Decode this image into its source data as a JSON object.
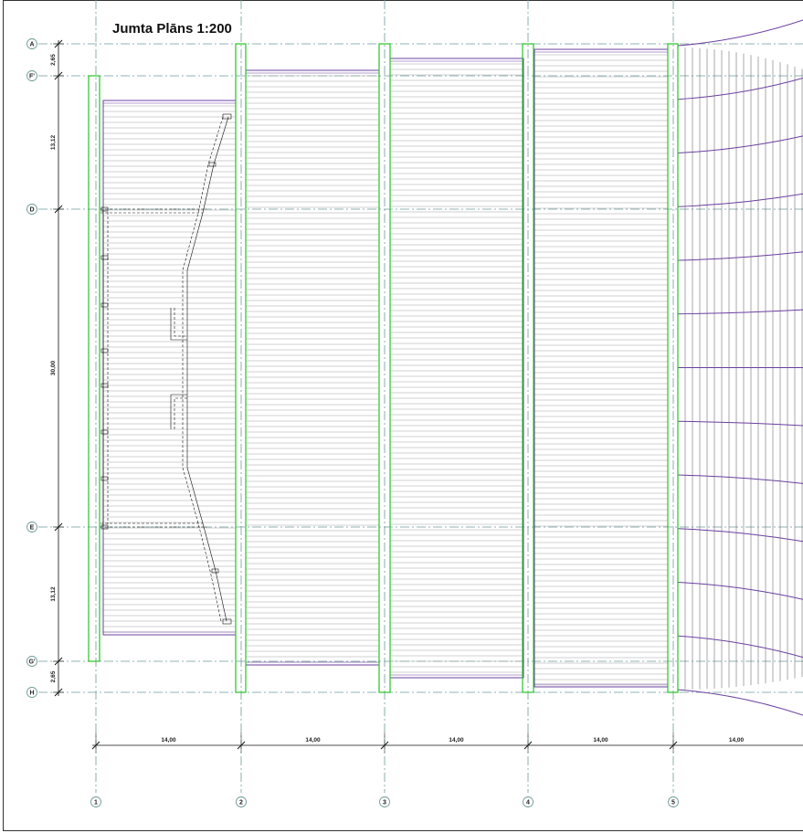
{
  "title": "Jumta Plāns 1:200",
  "colors": {
    "axis": "#6f9a9a",
    "column": "#25c425",
    "roof_edge": "#6b3fa0",
    "purlin": "#9a9a9a",
    "truss": "#111111",
    "dimension": "#111111"
  },
  "row_axes": [
    {
      "label": "A",
      "name": "axis-a"
    },
    {
      "label": "F'",
      "name": "axis-f-prime"
    },
    {
      "label": "D",
      "name": "axis-d"
    },
    {
      "label": "E",
      "name": "axis-e"
    },
    {
      "label": "G'",
      "name": "axis-g-prime"
    },
    {
      "label": "H",
      "name": "axis-h"
    }
  ],
  "column_axes": [
    {
      "label": "1"
    },
    {
      "label": "2"
    },
    {
      "label": "3"
    },
    {
      "label": "4"
    },
    {
      "label": "5"
    }
  ],
  "vertical_dimensions": [
    "2,65",
    "13,12",
    "30,00",
    "13,12",
    "2,65"
  ],
  "horizontal_dimensions": [
    "14,00",
    "14,00",
    "14,00",
    "14,00",
    "14,00"
  ]
}
